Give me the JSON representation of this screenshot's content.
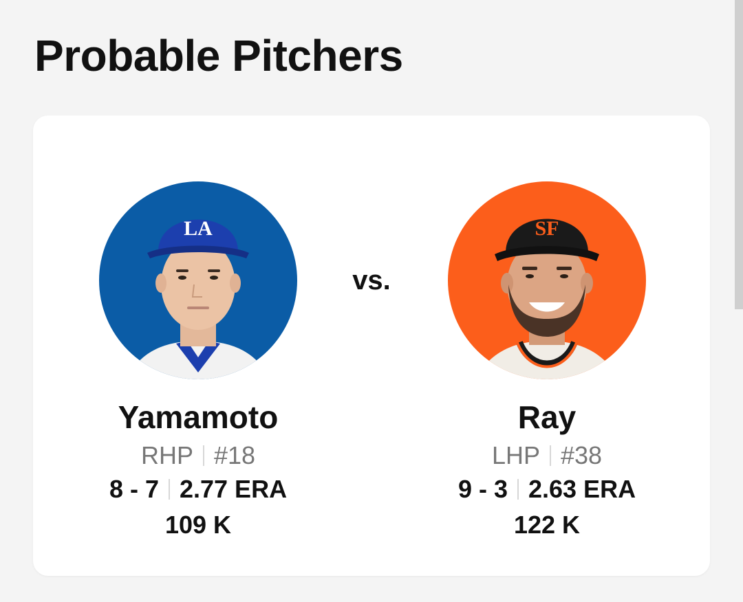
{
  "section": {
    "title": "Probable Pitchers"
  },
  "matchup": {
    "vs_label": "vs.",
    "home": {
      "name": "Yamamoto",
      "throws": "RHP",
      "number": "#18",
      "record": "8 - 7",
      "era": "2.77 ERA",
      "strikeouts": "109 K",
      "bg_color": "#0b5ca6",
      "cap_color": "#1c3fae",
      "cap_logo": "LA"
    },
    "away": {
      "name": "Ray",
      "throws": "LHP",
      "number": "#38",
      "record": "9 - 3",
      "era": "2.63 ERA",
      "strikeouts": "122 K",
      "bg_color": "#fc5e1b",
      "cap_color": "#1a1a1a",
      "cap_logo": "SF"
    }
  }
}
